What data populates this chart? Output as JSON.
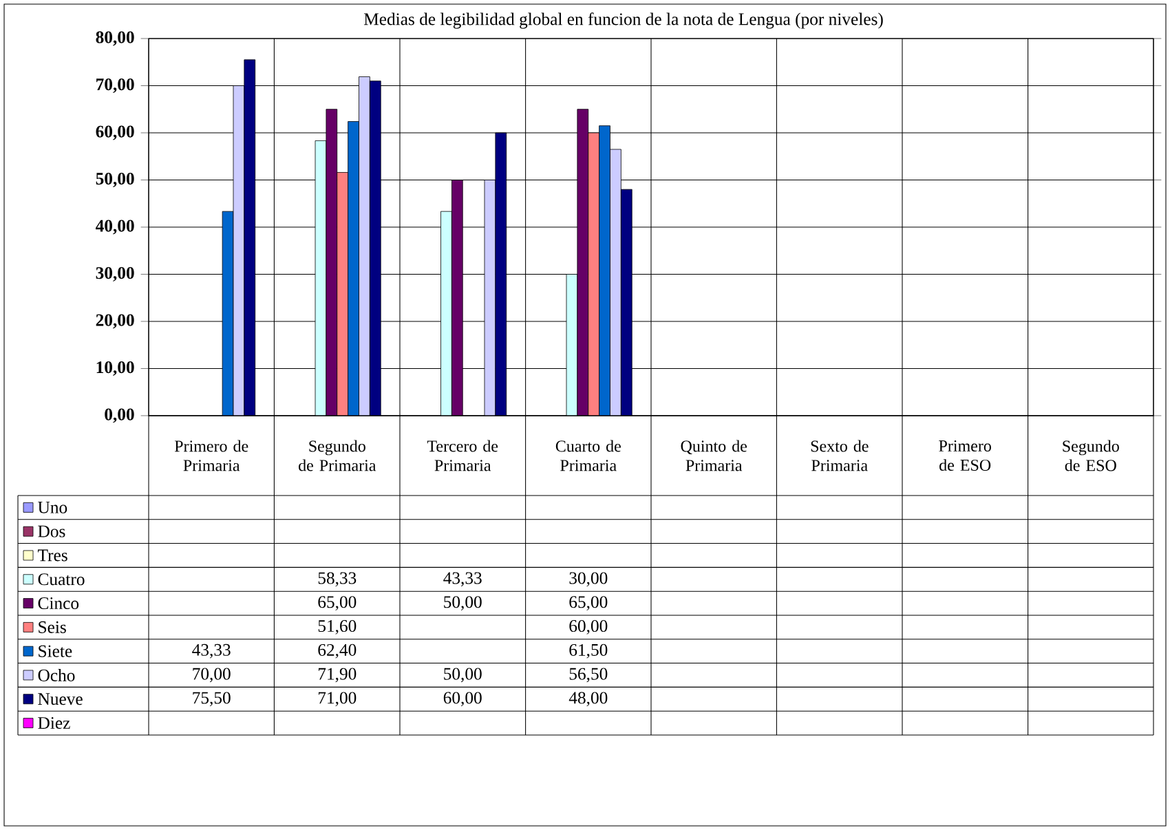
{
  "chart_data": {
    "type": "bar",
    "title": "Medias de legibilidad global en funcion de la nota de Lengua (por niveles)",
    "categories": [
      "Primero de Primaria",
      "Segundo de Primaria",
      "Tercero de Primaria",
      "Cuarto de Primaria",
      "Quinto de Primaria",
      "Sexto de Primaria",
      "Primero de ESO",
      "Segundo de ESO"
    ],
    "series": [
      {
        "name": "Uno",
        "color": "#9999ff",
        "values": [
          null,
          null,
          null,
          null,
          null,
          null,
          null,
          null
        ],
        "value_labels": [
          null,
          null,
          null,
          null,
          null,
          null,
          null,
          null
        ]
      },
      {
        "name": "Dos",
        "color": "#993366",
        "values": [
          null,
          null,
          null,
          null,
          null,
          null,
          null,
          null
        ],
        "value_labels": [
          null,
          null,
          null,
          null,
          null,
          null,
          null,
          null
        ]
      },
      {
        "name": "Tres",
        "color": "#ffffcc",
        "values": [
          null,
          null,
          null,
          null,
          null,
          null,
          null,
          null
        ],
        "value_labels": [
          null,
          null,
          null,
          null,
          null,
          null,
          null,
          null
        ]
      },
      {
        "name": "Cuatro",
        "color": "#ccffff",
        "values": [
          null,
          58.33,
          43.33,
          30.0,
          null,
          null,
          null,
          null
        ],
        "value_labels": [
          null,
          "58,33",
          "43,33",
          "30,00",
          null,
          null,
          null,
          null
        ]
      },
      {
        "name": "Cinco",
        "color": "#660066",
        "values": [
          null,
          65.0,
          50.0,
          65.0,
          null,
          null,
          null,
          null
        ],
        "value_labels": [
          null,
          "65,00",
          "50,00",
          "65,00",
          null,
          null,
          null,
          null
        ]
      },
      {
        "name": "Seis",
        "color": "#ff8080",
        "values": [
          null,
          51.6,
          null,
          60.0,
          null,
          null,
          null,
          null
        ],
        "value_labels": [
          null,
          "51,60",
          null,
          "60,00",
          null,
          null,
          null,
          null
        ]
      },
      {
        "name": "Siete",
        "color": "#0066cc",
        "values": [
          43.33,
          62.4,
          null,
          61.5,
          null,
          null,
          null,
          null
        ],
        "value_labels": [
          "43,33",
          "62,40",
          null,
          "61,50",
          null,
          null,
          null,
          null
        ]
      },
      {
        "name": "Ocho",
        "color": "#ccccff",
        "values": [
          70.0,
          71.9,
          50.0,
          56.5,
          null,
          null,
          null,
          null
        ],
        "value_labels": [
          "70,00",
          "71,90",
          "50,00",
          "56,50",
          null,
          null,
          null,
          null
        ]
      },
      {
        "name": "Nueve",
        "color": "#000080",
        "values": [
          75.5,
          71.0,
          60.0,
          48.0,
          null,
          null,
          null,
          null
        ],
        "value_labels": [
          "75,50",
          "71,00",
          "60,00",
          "48,00",
          null,
          null,
          null,
          null
        ]
      },
      {
        "name": "Diez",
        "color": "#ff00ff",
        "values": [
          null,
          null,
          null,
          null,
          null,
          null,
          null,
          null
        ],
        "value_labels": [
          null,
          null,
          null,
          null,
          null,
          null,
          null,
          null
        ]
      }
    ],
    "ylim": [
      0,
      80
    ],
    "yticks": [
      {
        "value": 0,
        "label": "0,00"
      },
      {
        "value": 10,
        "label": "10,00"
      },
      {
        "value": 20,
        "label": "20,00"
      },
      {
        "value": 30,
        "label": "30,00"
      },
      {
        "value": 40,
        "label": "40,00"
      },
      {
        "value": 50,
        "label": "50,00"
      },
      {
        "value": 60,
        "label": "60,00"
      },
      {
        "value": 70,
        "label": "70,00"
      },
      {
        "value": 80,
        "label": "80,00"
      }
    ],
    "grid": "y",
    "legend": "bottom"
  }
}
